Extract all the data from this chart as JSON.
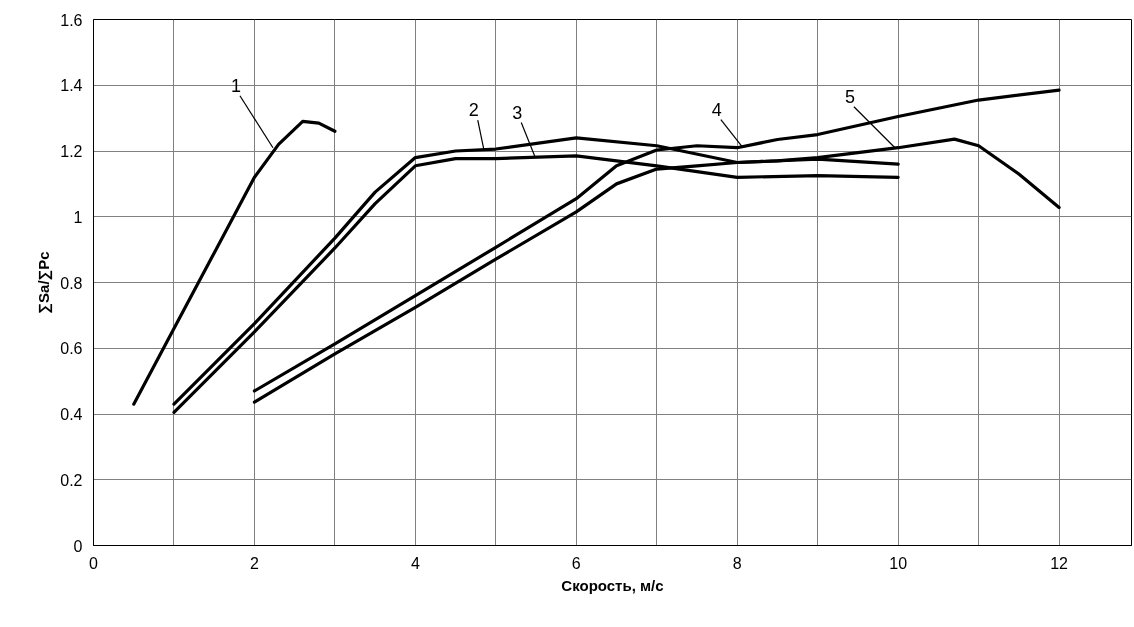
{
  "chart_data": {
    "type": "line",
    "xlabel": "Скорость, м/с",
    "ylabel": "∑Sa/∑Pc",
    "xlim": [
      0,
      12.9
    ],
    "ylim": [
      0,
      1.6
    ],
    "xticks": [
      0,
      {
        "value": 1,
        "label": null
      },
      2,
      {
        "value": 3,
        "label": null
      },
      4,
      {
        "value": 5,
        "label": null
      },
      6,
      {
        "value": 7,
        "label": null
      },
      8,
      {
        "value": 9,
        "label": null
      },
      10,
      {
        "value": 11,
        "label": null
      },
      12
    ],
    "yticks": [
      0,
      0.2,
      0.4,
      0.6,
      0.8,
      1,
      1.2,
      1.4,
      1.6
    ],
    "grid": true,
    "series": [
      {
        "color": "#000000",
        "x": [
          0.5,
          1,
          1.5,
          2,
          2.3,
          2.6,
          2.8,
          3
        ],
        "values": [
          0.43,
          0.66,
          0.89,
          1.12,
          1.22,
          1.29,
          1.285,
          1.26
        ]
      },
      {
        "color": "#000000",
        "x": [
          1,
          2,
          3,
          3.5,
          4,
          4.5,
          5,
          6,
          7,
          8,
          9,
          10
        ],
        "values": [
          0.43,
          0.675,
          0.935,
          1.075,
          1.18,
          1.2,
          1.206,
          1.24,
          1.216,
          1.165,
          1.175,
          1.16
        ]
      },
      {
        "color": "#000000",
        "x": [
          1,
          2,
          3,
          3.5,
          4,
          4.5,
          5,
          6,
          7,
          8,
          9,
          10
        ],
        "values": [
          0.405,
          0.65,
          0.905,
          1.04,
          1.155,
          1.177,
          1.177,
          1.185,
          1.155,
          1.12,
          1.125,
          1.12
        ]
      },
      {
        "color": "#000000",
        "x": [
          2,
          3,
          4,
          5,
          6,
          6.5,
          7,
          7.5,
          8,
          8.5,
          9,
          10,
          11,
          12
        ],
        "values": [
          0.47,
          0.613,
          0.76,
          0.907,
          1.055,
          1.155,
          1.203,
          1.216,
          1.21,
          1.235,
          1.25,
          1.305,
          1.355,
          1.385
        ]
      },
      {
        "color": "#000000",
        "x": [
          2,
          3,
          4,
          5,
          6,
          6.5,
          7,
          7.5,
          8,
          8.5,
          9,
          10,
          10.7,
          11,
          11.5,
          12
        ],
        "values": [
          0.436,
          0.583,
          0.724,
          0.871,
          1.015,
          1.1,
          1.145,
          1.155,
          1.165,
          1.17,
          1.18,
          1.21,
          1.236,
          1.216,
          1.13,
          1.028
        ]
      }
    ],
    "annotations": [
      {
        "text": "1",
        "x": 2.23,
        "y": 1.21
      },
      {
        "text": "2",
        "x": 4.85,
        "y": 1.206
      },
      {
        "text": "3",
        "x": 5.49,
        "y": 1.18
      },
      {
        "text": "4",
        "x": 8.07,
        "y": 1.21
      },
      {
        "text": "5",
        "x": 9.96,
        "y": 1.21
      }
    ]
  }
}
